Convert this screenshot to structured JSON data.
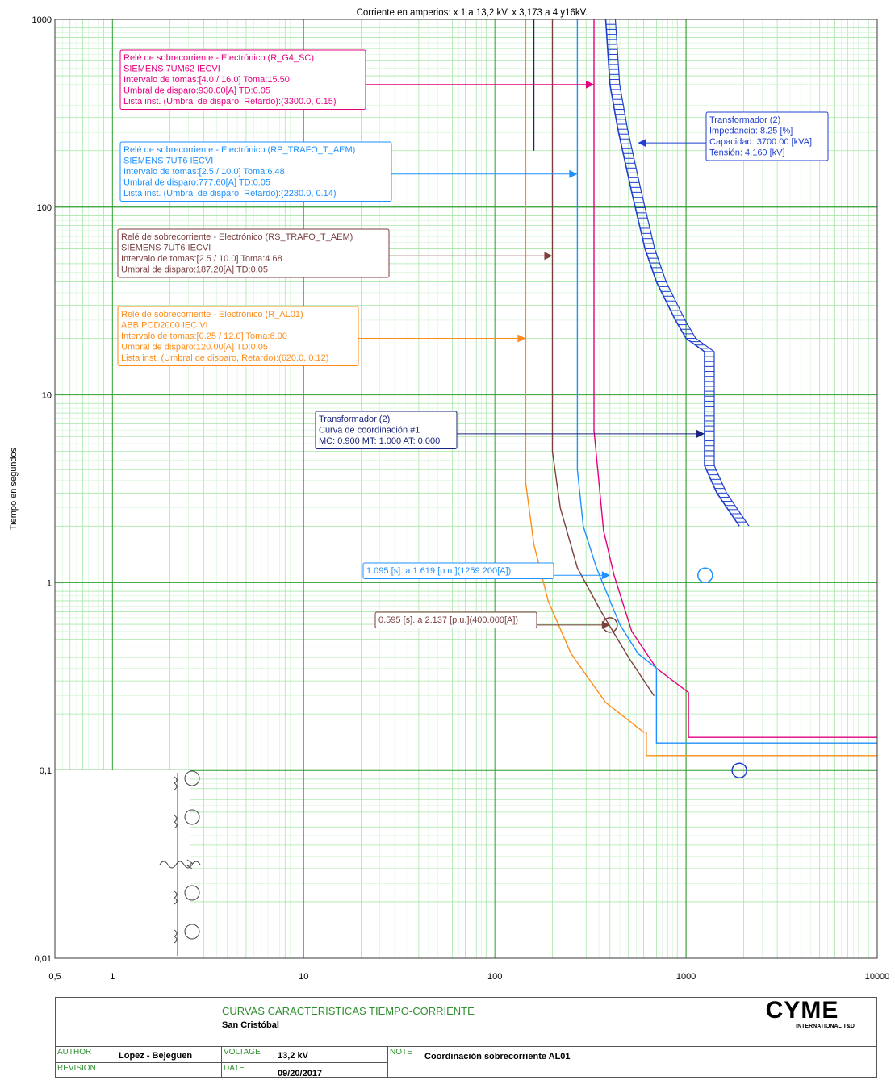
{
  "chart_data": {
    "type": "line",
    "title": "Corriente en amperios: x 1 a 13,2 kV, x 3,173 a 4 y16kV.",
    "ylabel": "Tiempo en segundos",
    "x_scale": "log",
    "y_scale": "log",
    "xlim": [
      0.5,
      10000
    ],
    "ylim": [
      0.01,
      1000
    ],
    "x_ticks": [
      {
        "value": 0.5,
        "label": "0,5"
      },
      {
        "value": 1,
        "label": "1"
      },
      {
        "value": 10,
        "label": "10"
      },
      {
        "value": 100,
        "label": "100"
      },
      {
        "value": 1000,
        "label": "1000"
      },
      {
        "value": 10000,
        "label": "10000"
      }
    ],
    "y_ticks": [
      {
        "value": 0.01,
        "label": "0,01"
      },
      {
        "value": 0.1,
        "label": "0,1"
      },
      {
        "value": 1,
        "label": "1"
      },
      {
        "value": 10,
        "label": "10"
      },
      {
        "value": 100,
        "label": "100"
      },
      {
        "value": 1000,
        "label": "1000"
      }
    ],
    "grid": true,
    "series": [
      {
        "id": "r_g4_sc",
        "color": "#e6007e",
        "points": [
          [
            330,
            1000
          ],
          [
            330,
            6.5
          ],
          [
            370,
            1.9
          ],
          [
            420,
            1.1
          ],
          [
            520,
            0.55
          ],
          [
            700,
            0.35
          ],
          [
            1030,
            0.26
          ],
          [
            1030,
            0.15
          ],
          [
            10000,
            0.15
          ]
        ]
      },
      {
        "id": "rp_trafo",
        "color": "#1e90ff",
        "points": [
          [
            270,
            1000
          ],
          [
            270,
            4.0
          ],
          [
            290,
            2.0
          ],
          [
            340,
            1.2
          ],
          [
            450,
            0.6
          ],
          [
            560,
            0.42
          ],
          [
            700,
            0.35
          ],
          [
            700,
            0.14
          ],
          [
            10000,
            0.14
          ]
        ]
      },
      {
        "id": "rs_trafo",
        "color": "#7b3f3f",
        "points": [
          [
            200,
            1000
          ],
          [
            200,
            5.0
          ],
          [
            220,
            2.5
          ],
          [
            270,
            1.2
          ],
          [
            360,
            0.7
          ],
          [
            500,
            0.4
          ],
          [
            680,
            0.25
          ]
        ]
      },
      {
        "id": "r_al01",
        "color": "#ff8c1a",
        "points": [
          [
            145,
            1000
          ],
          [
            145,
            3.4
          ],
          [
            160,
            1.6
          ],
          [
            190,
            0.8
          ],
          [
            250,
            0.42
          ],
          [
            380,
            0.23
          ],
          [
            600,
            0.16
          ],
          [
            620,
            0.16
          ],
          [
            620,
            0.12
          ],
          [
            10000,
            0.12
          ]
        ]
      },
      {
        "id": "g4_vertical",
        "color": "#1a237e",
        "points": [
          [
            160,
            200
          ],
          [
            160,
            1000
          ]
        ]
      }
    ],
    "damage_curve": {
      "color": "#1f3fd0",
      "points": [
        [
          380,
          1000
        ],
        [
          400,
          450
        ],
        [
          440,
          260
        ],
        [
          520,
          120
        ],
        [
          610,
          60
        ],
        [
          700,
          40
        ],
        [
          880,
          25
        ],
        [
          1000,
          20
        ],
        [
          1250,
          17
        ],
        [
          1250,
          4.2
        ],
        [
          1450,
          3.0
        ],
        [
          1900,
          2.0
        ]
      ]
    },
    "markers": [
      {
        "x": 1259.2,
        "y": 1.095,
        "color": "#1e90ff"
      },
      {
        "x": 400,
        "y": 0.595,
        "color": "#7b3f3f"
      },
      {
        "x": 1900,
        "y": 0.1,
        "color": "#1f3fd0"
      }
    ],
    "annotations": [
      {
        "color": "#e6007e",
        "lines": [
          "Relé de sobrecorriente - Electrónico (R_G4_SC)",
          "SIEMENS 7UM62 IECVI",
          "Intervalo de tomas:[4.0 / 16.0] Toma:15.50",
          "Umbral de disparo:930.00[A] TD:0.05",
          "Lista inst. (Umbral de disparo, Retardo):(3300.0, 0.15)"
        ],
        "arrow_to": [
          330,
          450
        ]
      },
      {
        "color": "#1e90ff",
        "lines": [
          "Relé de sobrecorriente - Electrónico (RP_TRAFO_T_AEM)",
          "SIEMENS 7UT6 IECVI",
          "Intervalo de tomas:[2.5 / 10.0] Toma:6.48",
          "Umbral de disparo:777.60[A] TD:0.05",
          "Lista inst. (Umbral de disparo, Retardo):(2280.0, 0.14)"
        ],
        "arrow_to": [
          270,
          150
        ]
      },
      {
        "color": "#7b3f3f",
        "lines": [
          "Relé de sobrecorriente - Electrónico (RS_TRAFO_T_AEM)",
          "SIEMENS 7UT6 IECVI",
          "Intervalo de tomas:[2.5 / 10.0] Toma:4.68",
          "Umbral de disparo:187.20[A] TD:0.05"
        ],
        "arrow_to": [
          200,
          55
        ]
      },
      {
        "color": "#ff8c1a",
        "lines": [
          "Relé de sobrecorriente - Electrónico (R_AL01)",
          "ABB PCD2000 IEC VI",
          "Intervalo de tomas:[0.25 / 12.0] Toma:6.00",
          "Umbral de disparo:120.00[A] TD:0.05",
          "Lista inst. (Umbral de disparo, Retardo):(620.0, 0.12)"
        ],
        "arrow_to": [
          145,
          20
        ]
      },
      {
        "color": "#1f3fd0",
        "lines": [
          "Transformador (2)",
          "Impedancia: 8.25 [%]",
          "Capacidad: 3700.00 [kVA]",
          "Tensión: 4.160 [kV]"
        ],
        "arrow_to": [
          560,
          220
        ]
      },
      {
        "color": "#1a237e",
        "lines": [
          "Transformador (2)",
          "Curva de coordinación #1",
          "MC: 0.900 MT: 1.000 AT: 0.000"
        ],
        "arrow_to": [
          1250,
          6.2
        ]
      },
      {
        "color": "#1e90ff",
        "lines": [
          "1.095 [s]. a 1.619 [p.u.](1259.200[A])"
        ],
        "arrow_to": [
          400,
          1.095
        ]
      },
      {
        "color": "#7b3f3f",
        "lines": [
          "0.595 [s]. a 2.137 [p.u.](400.000[A])"
        ],
        "arrow_to": [
          400,
          0.595
        ]
      }
    ]
  },
  "titleblock": {
    "title": "CURVAS CARACTERISTICAS TIEMPO-CORRIENTE",
    "subtitle": "San Cristóbal",
    "author_label": "AUTHOR",
    "author": "Lopez - Bejeguen",
    "voltage_label": "VOLTAGE",
    "voltage": "13,2 kV",
    "note_label": "NOTE",
    "note": "Coordinación sobrecorriente AL01",
    "revision_label": "REVISION",
    "date_label": "DATE",
    "date": "09/20/2017",
    "logo_text": "CYME",
    "logo_sub": "INTERNATIONAL T&D"
  }
}
